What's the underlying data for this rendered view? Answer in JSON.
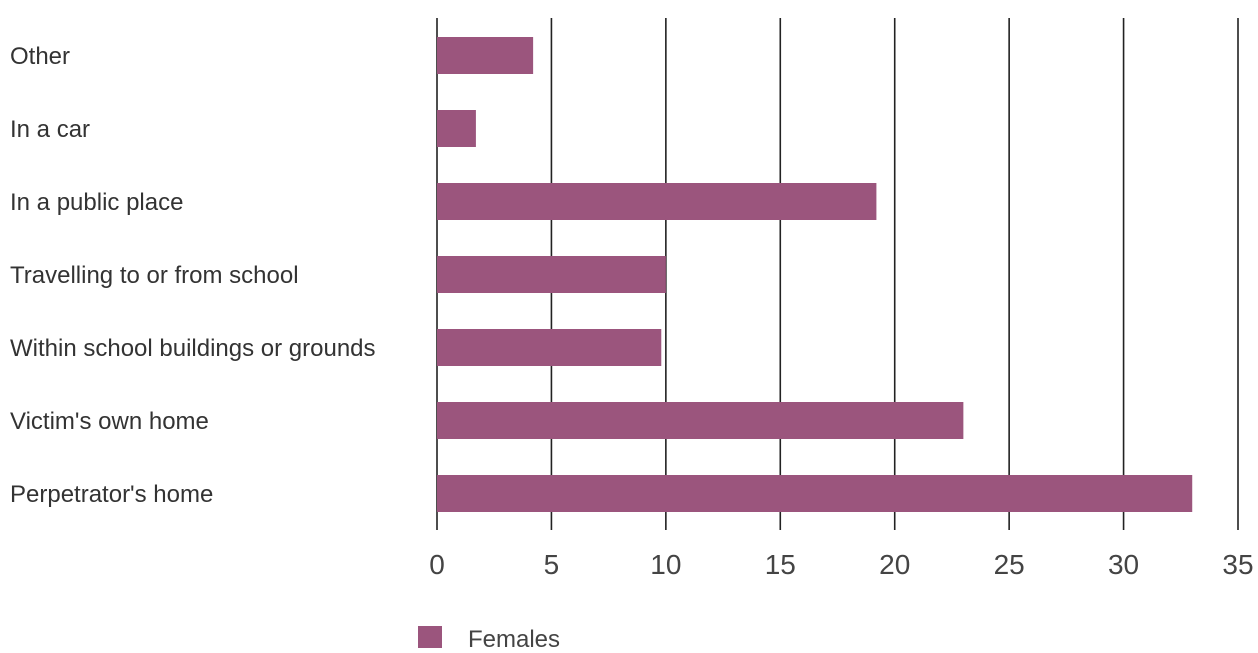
{
  "chart_data": {
    "type": "bar",
    "orientation": "horizontal",
    "categories": [
      "Other",
      "In a car",
      "In a public place",
      "Travelling to or from school",
      "Within school buildings or grounds",
      "Victim's own home",
      "Perpetrator's home"
    ],
    "series": [
      {
        "name": "Females",
        "values": [
          4.2,
          1.7,
          19.2,
          10.0,
          9.8,
          23.0,
          33.0
        ]
      }
    ],
    "xlim": [
      0,
      35
    ],
    "x_ticks": [
      "0",
      "5",
      "10",
      "15",
      "20",
      "25",
      "30",
      "35"
    ],
    "grid": "vertical lines",
    "legend": "bottom",
    "colors": {
      "bar": "#9b557d",
      "grid": "#222222",
      "text": "#333333",
      "tick_text": "#444444"
    }
  }
}
